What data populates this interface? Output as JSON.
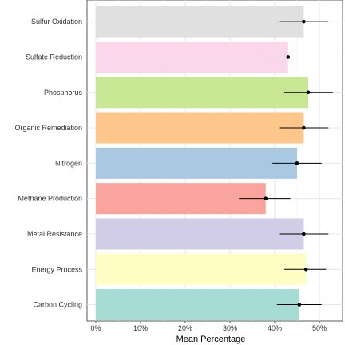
{
  "chart_data": {
    "type": "bar",
    "orientation": "horizontal",
    "title": "",
    "xlabel": "Mean Percentage",
    "ylabel": "",
    "xlim": [
      0,
      55
    ],
    "x_ticks": [
      0,
      10,
      20,
      30,
      40,
      50
    ],
    "x_tick_labels": [
      "0%",
      "10%",
      "20%",
      "30%",
      "40%",
      "50%"
    ],
    "grid": true,
    "legend": "none",
    "categories": [
      "Sulfur Oxidation",
      "Sulfate Reduction",
      "Phosphorus",
      "Organic Remediation",
      "Nitrogen",
      "Methane Production",
      "Metal Resistance",
      "Energy Process",
      "Carbon Cycling"
    ],
    "values": [
      46.5,
      43,
      47.5,
      46.5,
      45,
      38,
      46.5,
      47,
      45.5
    ],
    "error_low": [
      41,
      38,
      42,
      41,
      39.5,
      32,
      41,
      42,
      40.5
    ],
    "error_high": [
      52,
      48,
      53,
      52,
      50.5,
      43.5,
      52,
      51.5,
      50.5
    ],
    "colors": [
      "#e0e0e0",
      "#fbd7ea",
      "#c9e695",
      "#fdc68b",
      "#a9c9e3",
      "#f9a49d",
      "#d2cde6",
      "#fdfdc4",
      "#a7dcd4"
    ]
  }
}
